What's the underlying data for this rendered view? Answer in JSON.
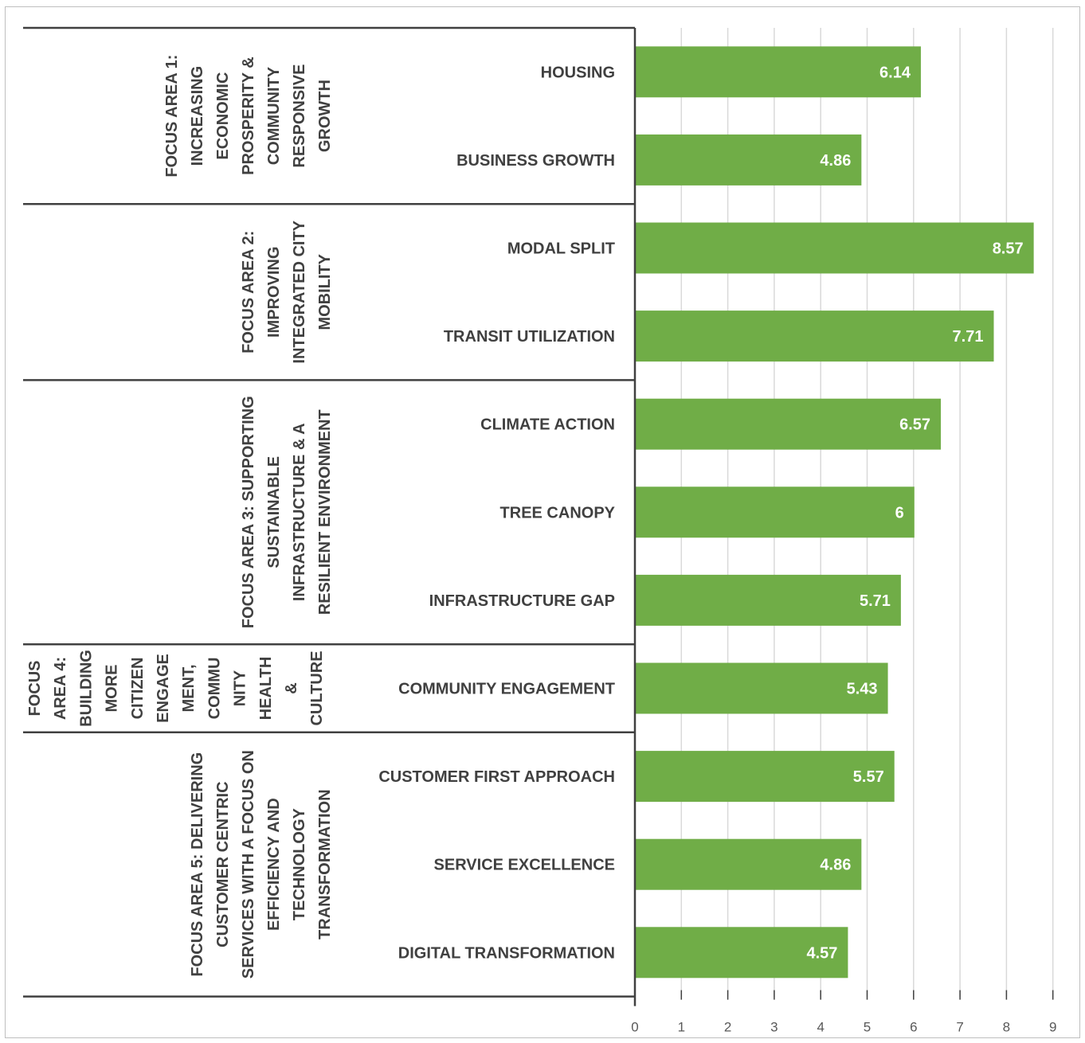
{
  "chart_data": {
    "type": "bar",
    "orientation": "horizontal",
    "title": "",
    "xlabel": "",
    "ylabel": "",
    "xlim": [
      0,
      9
    ],
    "x_ticks": [
      "0",
      "1",
      "2",
      "3",
      "4",
      "5",
      "6",
      "7",
      "8",
      "9"
    ],
    "grid": "vertical",
    "bar_color": "#70ad47",
    "legend": "none",
    "categories": [
      "HOUSING",
      "BUSINESS GROWTH",
      "MODAL SPLIT",
      "TRANSIT UTILIZATION",
      "CLIMATE ACTION",
      "TREE CANOPY",
      "INFRASTRUCTURE GAP",
      "COMMUNITY ENGAGEMENT",
      "CUSTOMER FIRST APPROACH",
      "SERVICE EXCELLENCE",
      "DIGITAL TRANSFORMATION"
    ],
    "values": [
      6.14,
      4.86,
      8.57,
      7.71,
      6.57,
      6,
      5.71,
      5.43,
      5.57,
      4.86,
      4.57
    ],
    "value_labels": [
      "6.14",
      "4.86",
      "8.57",
      "7.71",
      "6.57",
      "6",
      "5.71",
      "5.43",
      "5.57",
      "4.86",
      "4.57"
    ],
    "groups": [
      {
        "label_lines": [
          "FOCUS AREA 1:",
          "INCREASING",
          "ECONOMIC",
          "PROSPERITY &",
          "COMMUNITY",
          "RESPONSIVE",
          "GROWTH"
        ],
        "start": 0,
        "end": 1
      },
      {
        "label_lines": [
          "FOCUS AREA 2:",
          "IMPROVING",
          "INTEGRATED CITY",
          "MOBILITY"
        ],
        "start": 2,
        "end": 3
      },
      {
        "label_lines": [
          "FOCUS AREA 3: SUPPORTING",
          "SUSTAINABLE",
          "INFRASTRUCTURE & A",
          "RESILIENT ENVIRONMENT"
        ],
        "start": 4,
        "end": 6
      },
      {
        "label_lines": [
          "FOCUS",
          "AREA 4:",
          "BUILDING",
          "MORE",
          "CITIZEN",
          "ENGAGE",
          "MENT,",
          "COMMU",
          "NITY",
          "HEALTH",
          "&",
          "CULTURE"
        ],
        "start": 7,
        "end": 7
      },
      {
        "label_lines": [
          "FOCUS AREA 5: DELIVERING",
          "CUSTOMER CENTRIC",
          "SERVICES WITH A FOCUS ON",
          "EFFICIENCY AND",
          "TECHNOLOGY",
          "TRANSFORMATION"
        ],
        "start": 8,
        "end": 10
      }
    ]
  }
}
